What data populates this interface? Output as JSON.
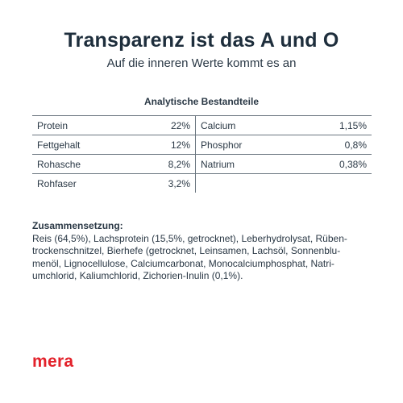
{
  "title": "Transparenz ist das A und O",
  "subtitle": "Auf die inneren Werte kommt es an",
  "analysis": {
    "heading": "Analytische Bestandteile",
    "rows": [
      {
        "name1": "Protein",
        "value1": "22%",
        "name2": "Calcium",
        "value2": "1,15%"
      },
      {
        "name1": "Fettgehalt",
        "value1": "12%",
        "name2": "Phosphor",
        "value2": "0,8%"
      },
      {
        "name1": "Rohasche",
        "value1": "8,2%",
        "name2": "Natrium",
        "value2": "0,38%"
      },
      {
        "name1": "Rohfaser",
        "value1": "3,2%",
        "name2": "",
        "value2": ""
      }
    ]
  },
  "composition": {
    "heading": "Zusammensetzung:",
    "text": "Reis (64,5%), Lachsprotein (15,5%, getrocknet), Leberhydrolysat, Rüben-\ntrockenschnitzel, Bierhefe (getrocknet, Leinsamen, Lachsöl, Sonnenblu-\nmenöl, Lignocellulose, Calciumcarbonat, Monocalciumphosphat, Natri-\numchlorid, Kaliumchlorid, Zichorien-Inulin (0,1%)."
  },
  "brand": "mera",
  "colors": {
    "brand": "#e3222b",
    "text": "#1f2d3a"
  }
}
